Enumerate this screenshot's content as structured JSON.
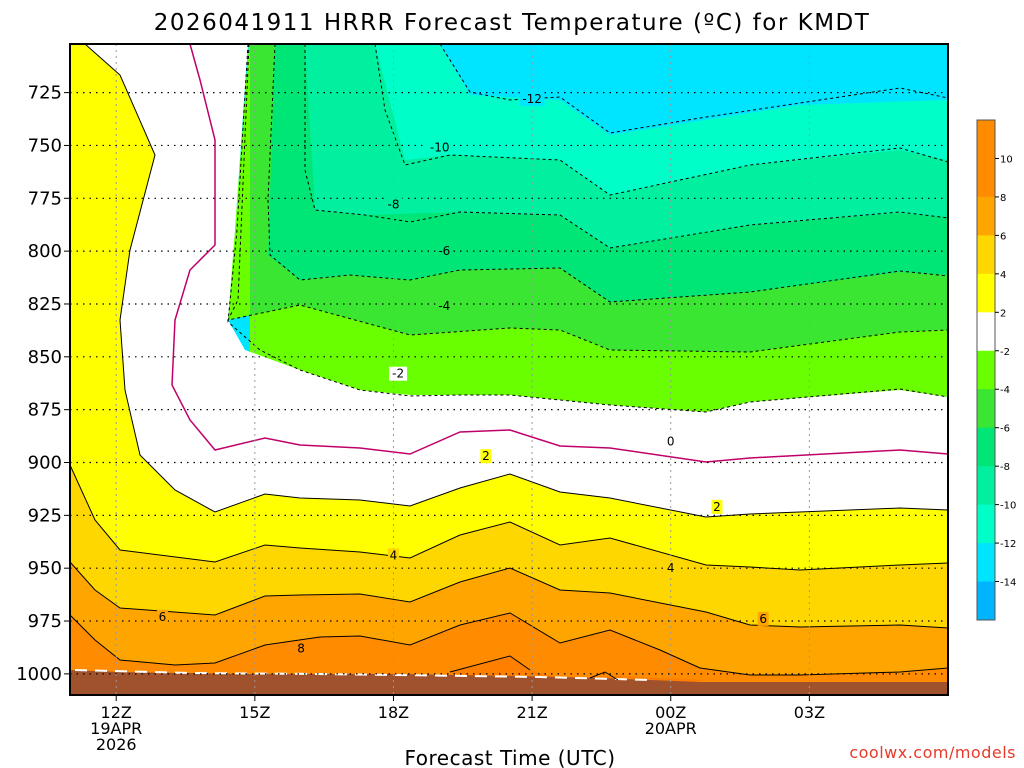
{
  "chart_data": {
    "type": "heatmap",
    "title": "2026041911 HRRR Forecast Temperature (ºC) for KMDT",
    "xlabel": "Forecast Time (UTC)",
    "ylabel": "",
    "credit": "coolwx.com/models",
    "x_hours": [
      11,
      30
    ],
    "y_pressure": [
      1010,
      702
    ],
    "x_ticks": [
      {
        "hour": 12,
        "lines": [
          "12Z",
          "19APR",
          "2026"
        ]
      },
      {
        "hour": 15,
        "lines": [
          "15Z"
        ]
      },
      {
        "hour": 18,
        "lines": [
          "18Z"
        ]
      },
      {
        "hour": 21,
        "lines": [
          "21Z"
        ]
      },
      {
        "hour": 24,
        "lines": [
          "00Z",
          "20APR"
        ]
      },
      {
        "hour": 27,
        "lines": [
          "03Z"
        ]
      }
    ],
    "y_ticks": [
      725,
      750,
      775,
      800,
      825,
      850,
      875,
      900,
      925,
      950,
      975,
      1000
    ],
    "grid": true,
    "colorbar": {
      "ticks": [
        "10",
        "8",
        "6",
        "4",
        "2",
        "-2",
        "-4",
        "-6",
        "-8",
        "-10",
        "-12",
        "-14"
      ],
      "colors": [
        "#ff8c00",
        "#ffa500",
        "#ffd700",
        "#ffff00",
        "#ffffff",
        "#6aff00",
        "#3ae632",
        "#00e676",
        "#00f0a0",
        "#00ffc8",
        "#00e5ff",
        "#00b4ff"
      ]
    },
    "contour_labels": [
      {
        "text": "-12",
        "hour": 21.0,
        "p": 728
      },
      {
        "text": "-10",
        "hour": 19.0,
        "p": 751
      },
      {
        "text": "-8",
        "hour": 18.0,
        "p": 778
      },
      {
        "text": "-6",
        "hour": 19.1,
        "p": 800
      },
      {
        "text": "-4",
        "hour": 19.1,
        "p": 826
      },
      {
        "text": "-2",
        "hour": 18.1,
        "p": 858
      },
      {
        "text": "0",
        "hour": 24.0,
        "p": 890
      },
      {
        "text": "2",
        "hour": 20.0,
        "p": 897
      },
      {
        "text": "2",
        "hour": 25.0,
        "p": 921
      },
      {
        "text": "4",
        "hour": 18.0,
        "p": 944
      },
      {
        "text": "4",
        "hour": 24.0,
        "p": 950
      },
      {
        "text": "6",
        "hour": 13.0,
        "p": 973
      },
      {
        "text": "6",
        "hour": 26.0,
        "p": 974
      },
      {
        "text": "8",
        "hour": 16.0,
        "p": 988
      }
    ]
  }
}
